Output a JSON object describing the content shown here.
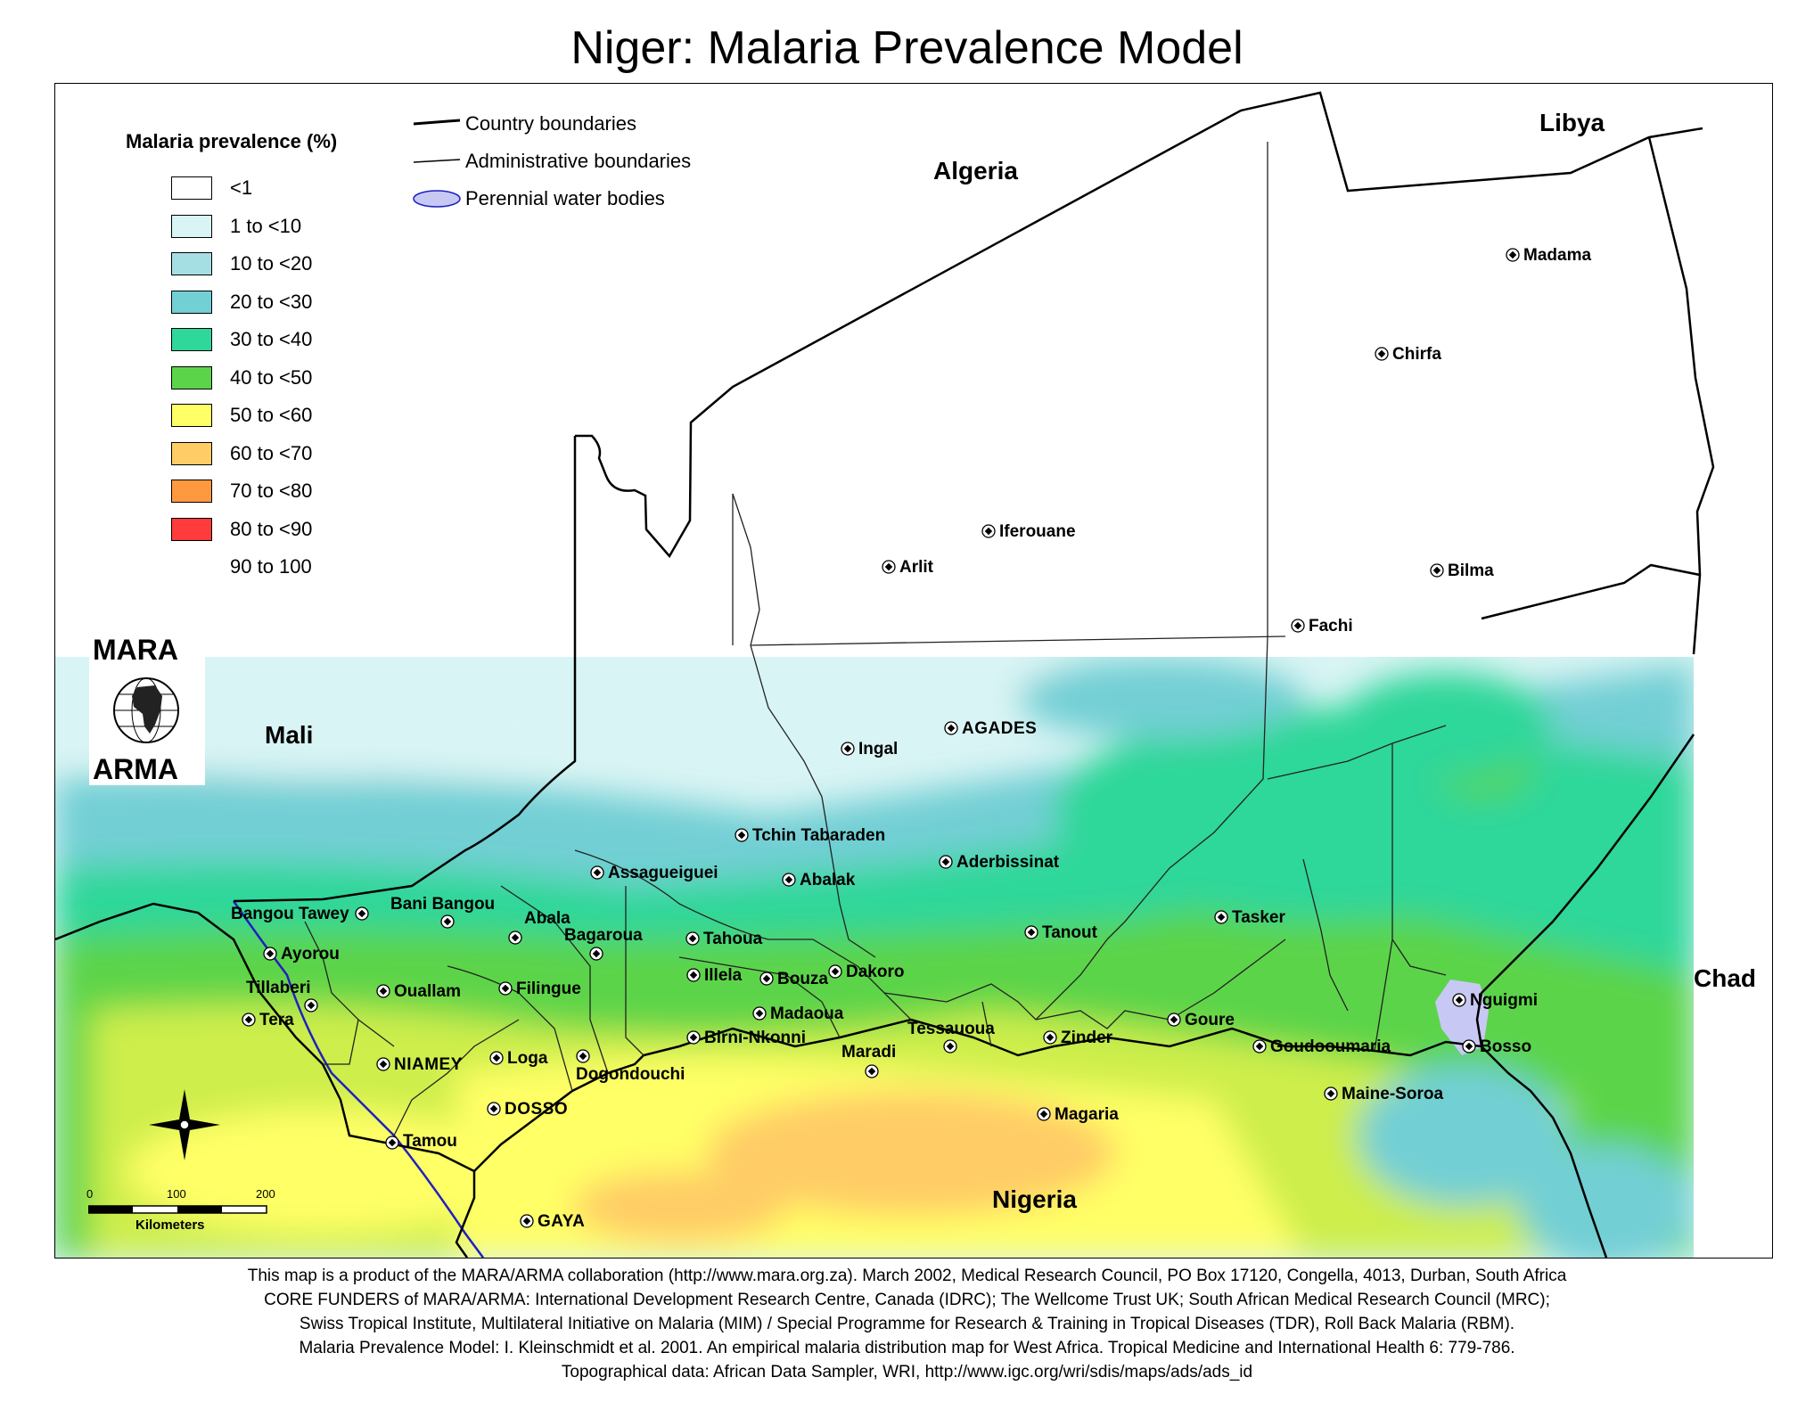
{
  "title": "Niger:  Malaria Prevalence Model",
  "legend": {
    "title": "Malaria prevalence (%)",
    "items": [
      {
        "label": "<1",
        "color": "#ffffff"
      },
      {
        "label": "1 to <10",
        "color": "#d9f4f4"
      },
      {
        "label": "10 to <20",
        "color": "#a6dfe3"
      },
      {
        "label": "20 to <30",
        "color": "#72cfd4"
      },
      {
        "label": "30 to <40",
        "color": "#2fd79a"
      },
      {
        "label": "40 to <50",
        "color": "#5bd44a"
      },
      {
        "label": "50 to <60",
        "color": "#cdee4c"
      },
      {
        "label": "60 to <70",
        "color": "#ffff66"
      },
      {
        "label": "70 to <80",
        "color": "#ffcc66"
      },
      {
        "label": "80 to <90",
        "color": "#ff9940"
      },
      {
        "label": "90 to 100",
        "color": "#ff3b3b"
      }
    ]
  },
  "reference_legend": {
    "country_boundaries": "Country boundaries",
    "admin_boundaries": "Administrative boundaries",
    "water_bodies": "Perennial water bodies",
    "water_color": "#c8c8f5"
  },
  "countries": {
    "algeria": "Algeria",
    "libya": "Libya",
    "mali": "Mali",
    "chad": "Chad",
    "nigeria": "Nigeria"
  },
  "towns": {
    "madama": "Madama",
    "chirfa": "Chirfa",
    "iferouane": "Iferouane",
    "arlit": "Arlit",
    "bilma": "Bilma",
    "fachi": "Fachi",
    "agades": "AGADES",
    "ingal": "Ingal",
    "tchin_tabaraden": "Tchin Tabaraden",
    "assagueiguei": "Assagueiguei",
    "abalak": "Abalak",
    "aderbissinat": "Aderbissinat",
    "bangou_tawey": "Bangou Tawey",
    "bani_bangou": "Bani Bangou",
    "abala": "Abala",
    "tasker": "Tasker",
    "tanout": "Tanout",
    "ayorou": "Ayorou",
    "bagaroua": "Bagaroua",
    "tahoua": "Tahoua",
    "illela": "Illela",
    "bouza": "Bouza",
    "dakoro": "Dakoro",
    "tillaberi": "Tillaberi",
    "ouallam": "Ouallam",
    "filingue": "Filingue",
    "nguigmi": "Nguigmi",
    "tera": "Tera",
    "madaoua": "Madaoua",
    "goure": "Goure",
    "tessaouoa": "Tessauoua",
    "birni_nkonni": "Birni-Nkonni",
    "zinder": "Zinder",
    "goudoumaria": "Goudooumaria",
    "bosso": "Bosso",
    "niamey": "NIAMEY",
    "loga": "Loga",
    "dogondouchi": "Dogondouchi",
    "maradi": "Maradi",
    "maine_soroa": "Maine-Soroa",
    "dosso": "DOSSO",
    "magaria": "Magaria",
    "tamou": "Tamou",
    "gaya": "GAYA"
  },
  "logo": {
    "top": "MARA",
    "bottom": "ARMA"
  },
  "scale_bar": {
    "ticks": [
      "0",
      "100",
      "200"
    ],
    "units": "Kilometers"
  },
  "footer": [
    "This map is a product of the MARA/ARMA collaboration (http://www.mara.org.za).  March 2002, Medical Research Council, PO Box 17120, Congella, 4013, Durban, South Africa",
    "CORE FUNDERS of MARA/ARMA: International Development Research Centre, Canada (IDRC); The Wellcome Trust UK; South African Medical Research Council (MRC);",
    "Swiss Tropical Institute, Multilateral Initiative on Malaria (MIM) / Special Programme for Research & Training in Tropical Diseases (TDR), Roll Back Malaria (RBM).",
    "Malaria Prevalence Model: I. Kleinschmidt et al. 2001. An empirical malaria distribution map for West Africa. Tropical Medicine and International Health 6: 779-786.",
    "Topographical data: African Data Sampler, WRI, http://www.igc.org/wri/sdis/maps/ads/ads_id"
  ]
}
